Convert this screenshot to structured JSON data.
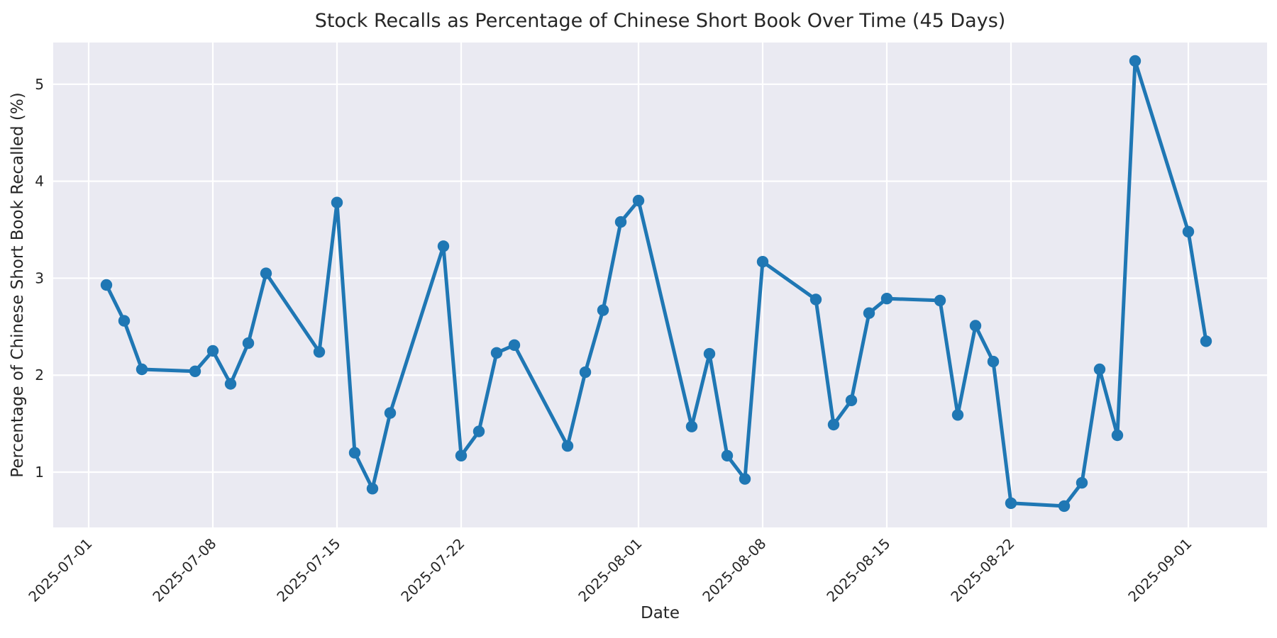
{
  "chart_data": {
    "type": "line",
    "title": "Stock Recalls as Percentage of Chinese Short Book Over Time (45 Days)",
    "xlabel": "Date",
    "ylabel": "Percentage of Chinese Short Book Recalled (%)",
    "x": [
      "2025-07-02",
      "2025-07-03",
      "2025-07-04",
      "2025-07-07",
      "2025-07-08",
      "2025-07-09",
      "2025-07-10",
      "2025-07-11",
      "2025-07-14",
      "2025-07-15",
      "2025-07-16",
      "2025-07-17",
      "2025-07-18",
      "2025-07-21",
      "2025-07-22",
      "2025-07-23",
      "2025-07-24",
      "2025-07-25",
      "2025-07-28",
      "2025-07-29",
      "2025-07-30",
      "2025-07-31",
      "2025-08-01",
      "2025-08-04",
      "2025-08-05",
      "2025-08-06",
      "2025-08-07",
      "2025-08-08",
      "2025-08-11",
      "2025-08-12",
      "2025-08-13",
      "2025-08-14",
      "2025-08-15",
      "2025-08-18",
      "2025-08-19",
      "2025-08-20",
      "2025-08-21",
      "2025-08-22",
      "2025-08-25",
      "2025-08-26",
      "2025-08-27",
      "2025-08-28",
      "2025-08-29",
      "2025-09-01",
      "2025-09-02"
    ],
    "values": [
      2.93,
      2.56,
      2.06,
      2.04,
      2.25,
      1.91,
      2.33,
      3.05,
      2.24,
      3.78,
      1.2,
      0.83,
      1.61,
      3.33,
      1.17,
      1.42,
      2.23,
      2.31,
      1.27,
      2.03,
      2.67,
      3.58,
      3.8,
      1.47,
      2.22,
      1.17,
      0.93,
      3.17,
      2.78,
      1.49,
      1.74,
      2.64,
      2.79,
      2.77,
      1.59,
      2.51,
      2.14,
      0.68,
      0.65,
      0.89,
      2.06,
      1.38,
      5.24,
      3.48,
      2.35
    ],
    "x_ticks": [
      "2025-07-01",
      "2025-07-08",
      "2025-07-15",
      "2025-07-22",
      "2025-08-01",
      "2025-08-08",
      "2025-08-15",
      "2025-08-22",
      "2025-09-01"
    ],
    "x_tick_rotation": 45,
    "y_ticks": [
      1,
      2,
      3,
      4,
      5
    ],
    "x_origin": "2025-07-01",
    "xlim_days": [
      -2.0,
      66.44
    ],
    "ylim": [
      0.43,
      5.43
    ],
    "grid": true,
    "legend": "none",
    "marker": "o",
    "colors": {
      "line": "#1f77b4",
      "marker": "#1f77b4",
      "plot_background": "#eaeaf2",
      "grid": "#ffffff",
      "figure_background": "#ffffff",
      "text": "#262626"
    }
  }
}
